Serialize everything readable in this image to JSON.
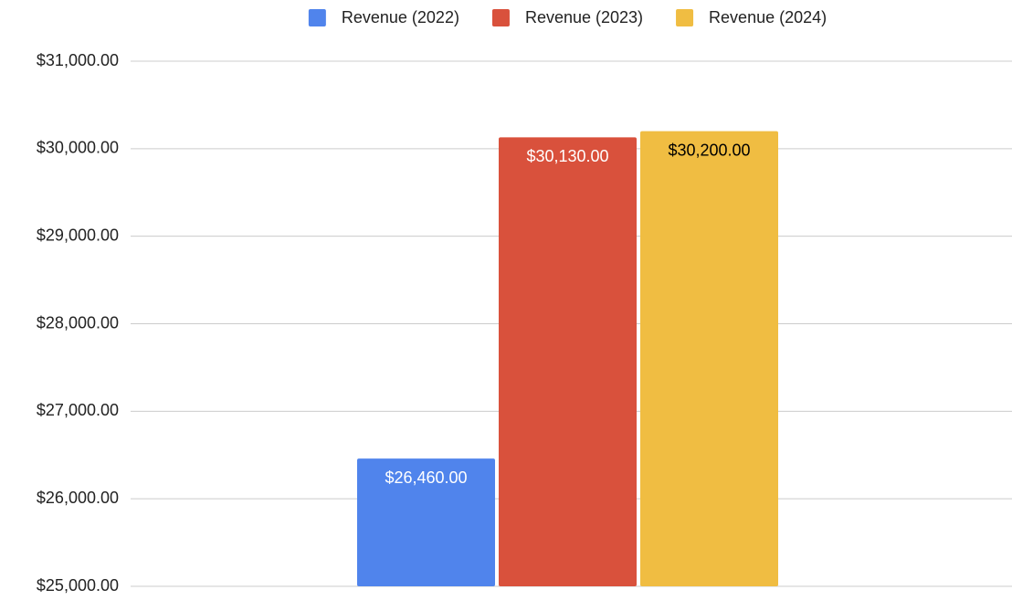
{
  "chart_data": {
    "type": "bar",
    "categories": [
      null
    ],
    "series": [
      {
        "name": "Revenue (2022)",
        "color": "#5084ec",
        "label_color": "#ffffff",
        "values": [
          26460
        ],
        "value_labels": [
          "$26,460.00"
        ]
      },
      {
        "name": "Revenue (2023)",
        "color": "#d9513c",
        "label_color": "#ffffff",
        "values": [
          30130
        ],
        "value_labels": [
          "$30,130.00"
        ]
      },
      {
        "name": "Revenue (2024)",
        "color": "#f0bd42",
        "label_color": "#000000",
        "values": [
          30200
        ],
        "value_labels": [
          "$30,200.00"
        ]
      }
    ],
    "ylim": [
      25000,
      31000
    ],
    "yticks": [
      {
        "value": 25000,
        "label": "$25,000.00"
      },
      {
        "value": 26000,
        "label": "$26,000.00"
      },
      {
        "value": 27000,
        "label": "$27,000.00"
      },
      {
        "value": 28000,
        "label": "$28,000.00"
      },
      {
        "value": 29000,
        "label": "$29,000.00"
      },
      {
        "value": 30000,
        "label": "$30,000.00"
      },
      {
        "value": 31000,
        "label": "$31,000.00"
      }
    ],
    "grid": true,
    "legend": "top"
  }
}
